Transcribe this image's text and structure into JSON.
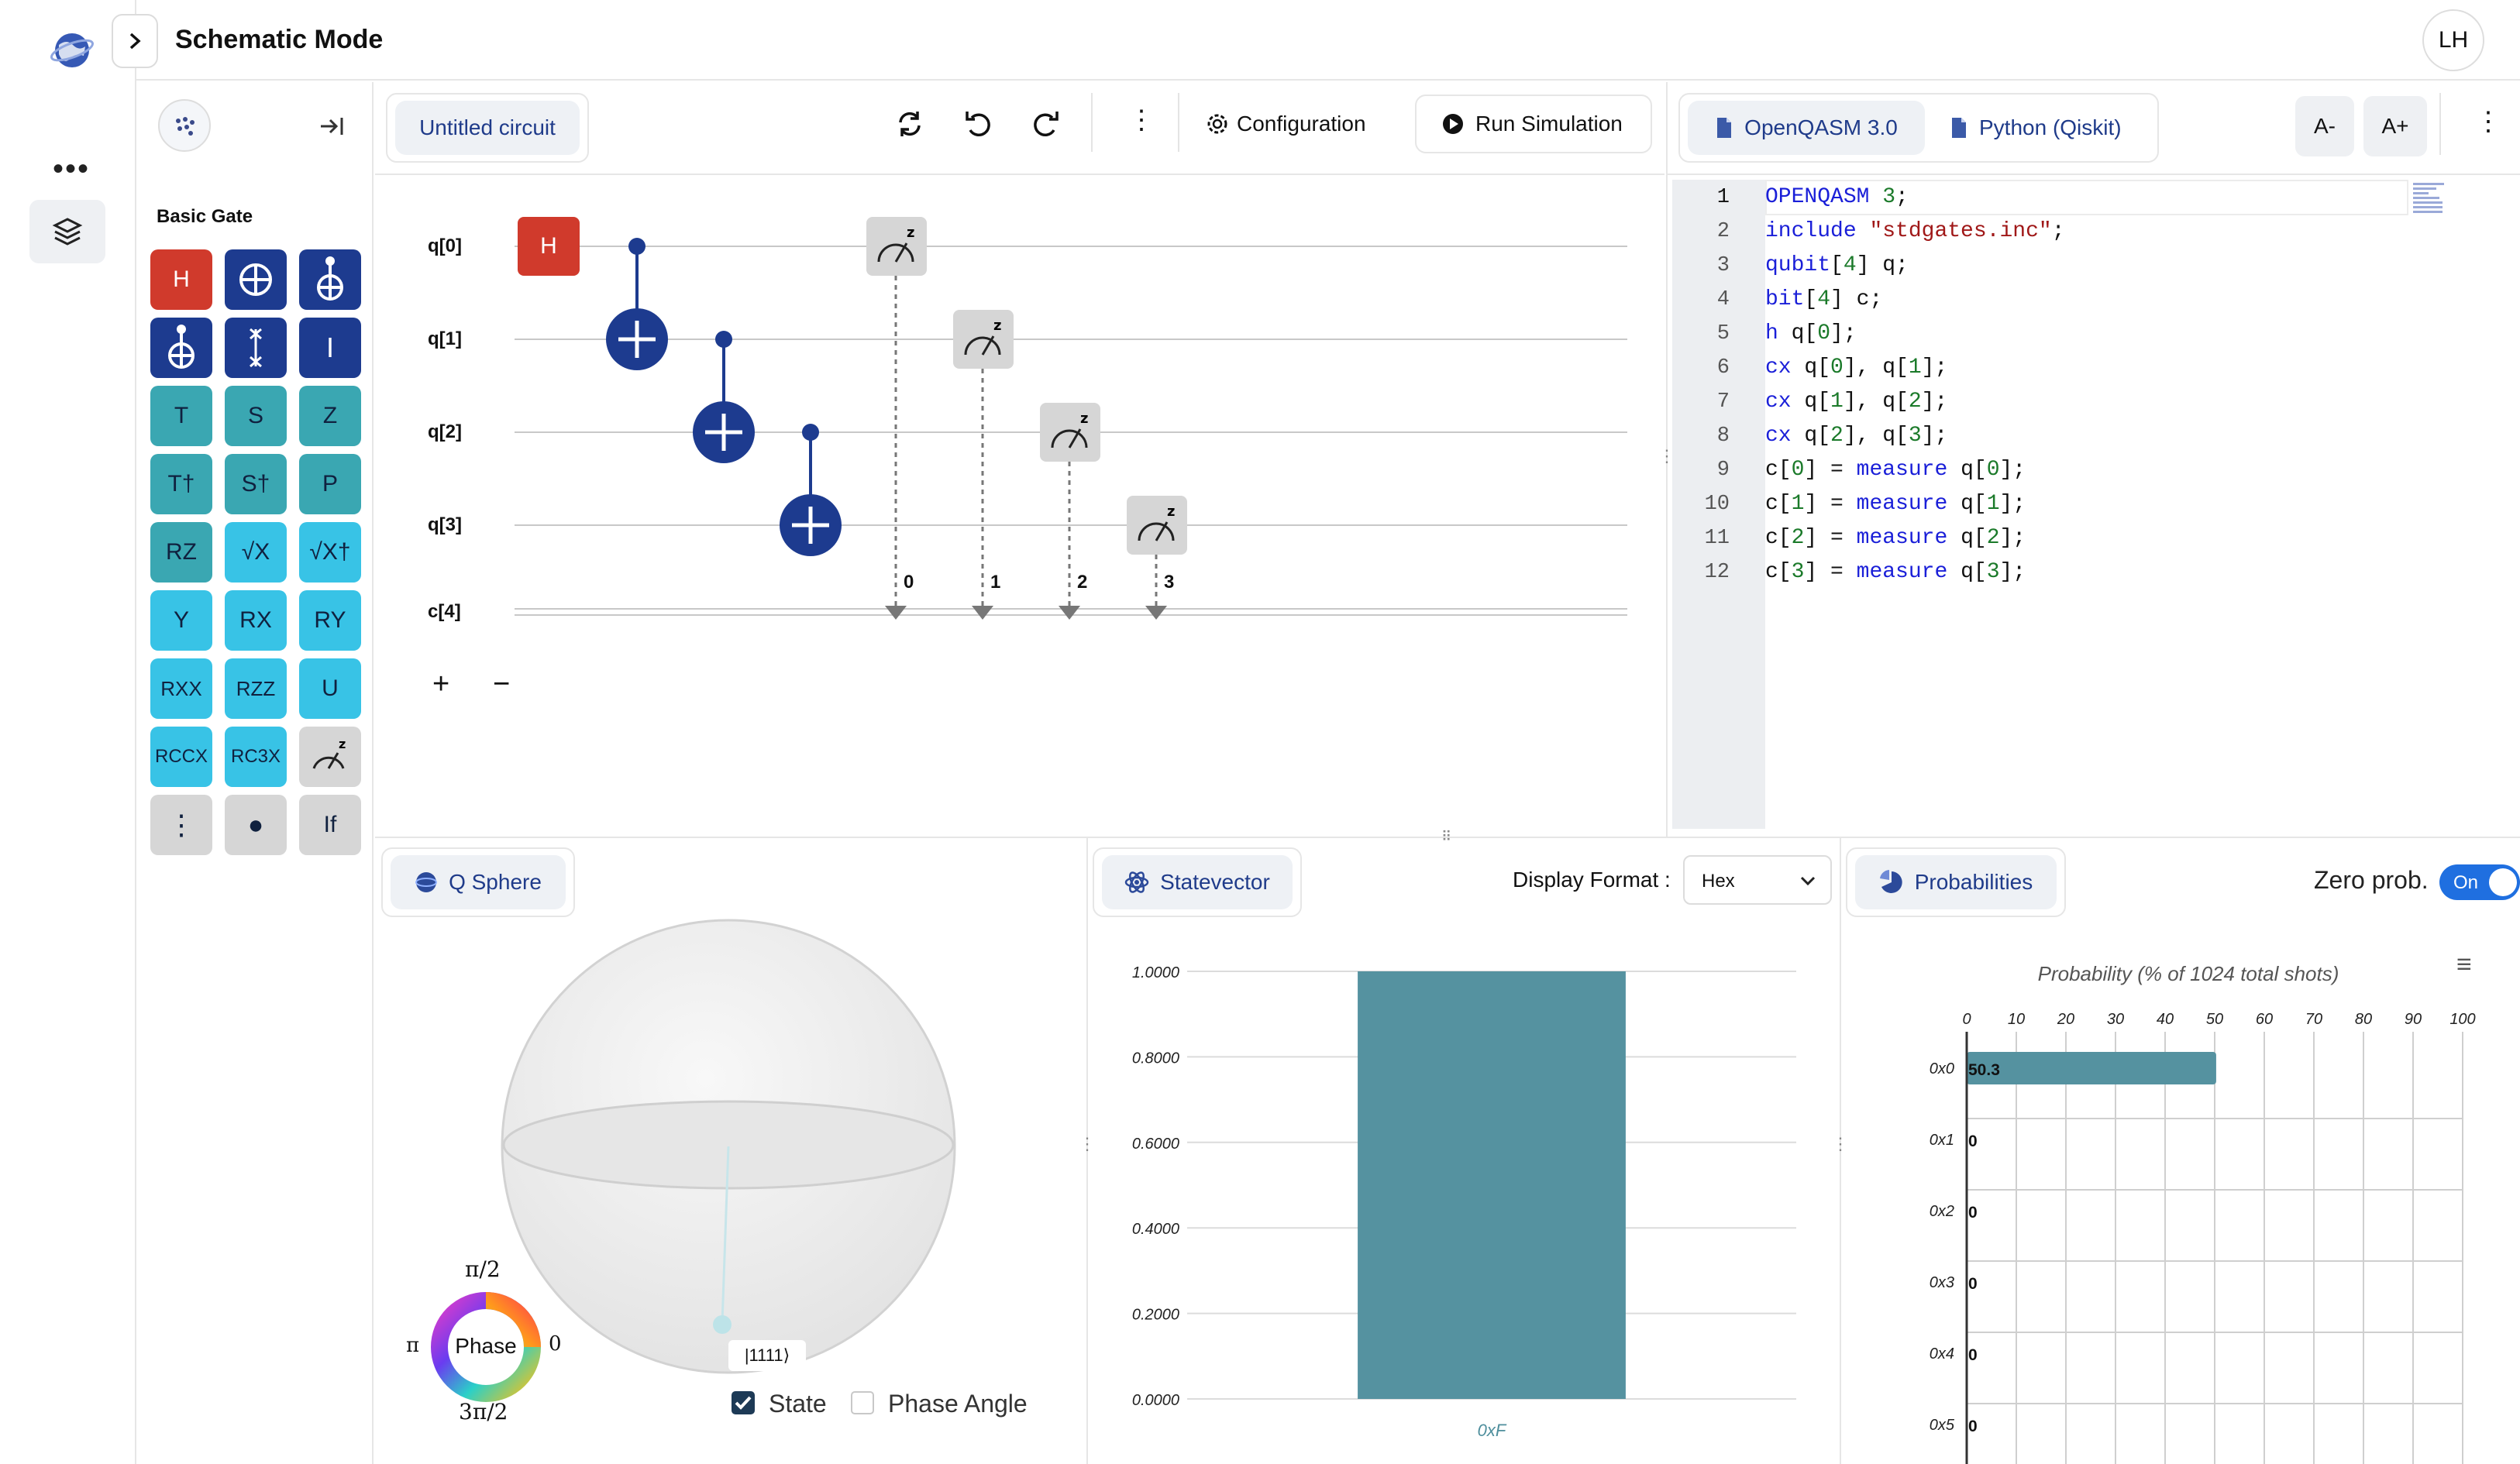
{
  "header": {
    "title": "Schematic Mode",
    "avatar": "LH",
    "expand_icon": "chevron-right-icon"
  },
  "rail": {
    "logo_icon": "globe-logo-icon",
    "more_icon": "more-horizontal-icon",
    "layers_icon": "layers-icon"
  },
  "palette": {
    "section_title": "Basic Gate",
    "collapse_icon": "collapse-right-icon",
    "gates": [
      "H",
      "⊕",
      "⊕",
      "⊕",
      "↕",
      "I",
      "T",
      "S",
      "Z",
      "T†",
      "S†",
      "P",
      "RZ",
      "√X",
      "√X†",
      "Y",
      "RX",
      "RY",
      "RXX",
      "RZZ",
      "U",
      "RCCX",
      "RC3X",
      "measure",
      "⋮",
      "●",
      "If"
    ]
  },
  "toolbar": {
    "circuit_name": "Untitled circuit",
    "configuration": "Configuration",
    "run": "Run Simulation"
  },
  "circuit": {
    "qubits": [
      "q[0]",
      "q[1]",
      "q[2]",
      "q[3]"
    ],
    "classical": "c[4]",
    "h_gate": "H",
    "bit_labels": [
      "0",
      "1",
      "2",
      "3"
    ],
    "add": "+",
    "remove": "−"
  },
  "editor": {
    "tabs": [
      "OpenQASM 3.0",
      "Python (Qiskit)"
    ],
    "font_minus": "A-",
    "font_plus": "A+",
    "line_numbers": [
      "1",
      "2",
      "3",
      "4",
      "5",
      "6",
      "7",
      "8",
      "9",
      "10",
      "11",
      "12"
    ],
    "lines": [
      "OPENQASM 3;",
      "include \"stdgates.inc\";",
      "qubit[4] q;",
      "bit[4] c;",
      "h q[0];",
      "cx q[0], q[1];",
      "cx q[1], q[2];",
      "cx q[2], q[3];",
      "c[0] = measure q[0];",
      "c[1] = measure q[1];",
      "c[2] = measure q[2];",
      "c[3] = measure q[3];"
    ]
  },
  "qsphere": {
    "tab": "Q Sphere",
    "state_label": "|1111⟩",
    "phase_label": "Phase",
    "phase_top": "π/2",
    "phase_left": "π",
    "phase_right": "0",
    "phase_bottom": "3π/2",
    "state_checkbox": "State",
    "phase_angle_checkbox": "Phase Angle",
    "state_checked": true,
    "phase_angle_checked": false
  },
  "statevector": {
    "tab": "Statevector",
    "display_format_label": "Display Format :",
    "display_format_value": "Hex"
  },
  "probabilities": {
    "tab": "Probabilities",
    "zero_prob_label": "Zero prob.",
    "toggle_label": "On"
  },
  "chart_data": [
    {
      "type": "bar",
      "categories": [
        "0xF"
      ],
      "values": [
        1.0
      ],
      "ylim": [
        0,
        1
      ],
      "yticks": [
        "0.0000",
        "0.2000",
        "0.4000",
        "0.6000",
        "0.8000",
        "1.0000"
      ],
      "color": "#5592a0",
      "grid": true
    },
    {
      "type": "bar",
      "orientation": "horizontal",
      "title": "Probability (% of 1024 total shots)",
      "categories": [
        "0x0",
        "0x1",
        "0x2",
        "0x3",
        "0x4",
        "0x5"
      ],
      "values": [
        50.3,
        0,
        0,
        0,
        0,
        0
      ],
      "value_labels": [
        "50.3",
        "0",
        "0",
        "0",
        "0",
        "0"
      ],
      "xlim": [
        0,
        100
      ],
      "xticks": [
        "0",
        "10",
        "20",
        "30",
        "40",
        "50",
        "60",
        "70",
        "80",
        "90",
        "100"
      ],
      "color": "#5592a0",
      "grid": true
    }
  ]
}
